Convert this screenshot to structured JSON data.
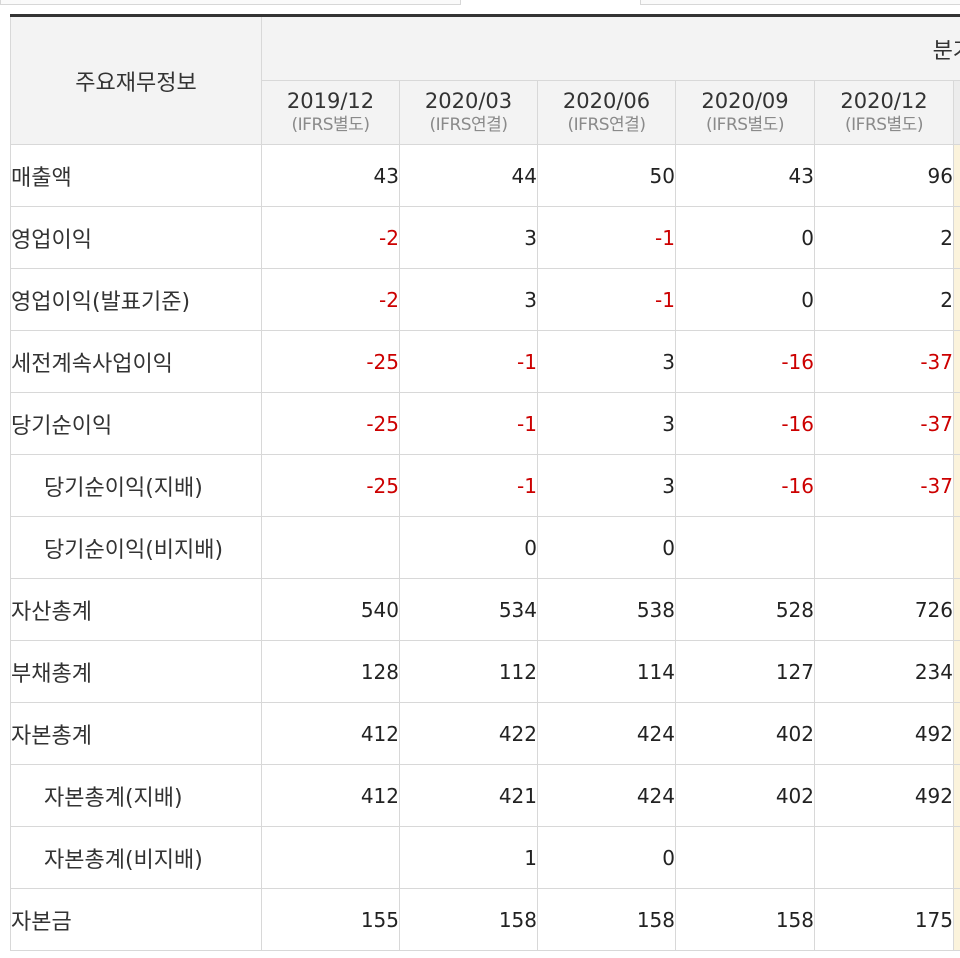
{
  "table": {
    "corner_label": "주요재무정보",
    "group_label": "분기",
    "periods": [
      {
        "date": "2019/12",
        "basis": "(IFRS별도)"
      },
      {
        "date": "2020/03",
        "basis": "(IFRS연결)"
      },
      {
        "date": "2020/06",
        "basis": "(IFRS연결)"
      },
      {
        "date": "2020/09",
        "basis": "(IFRS별도)"
      },
      {
        "date": "2020/12",
        "basis": "(IFRS별도)"
      }
    ],
    "rows": [
      {
        "label": "매출액",
        "values": [
          "43",
          "44",
          "50",
          "43",
          "96"
        ]
      },
      {
        "label": "영업이익",
        "values": [
          "-2",
          "3",
          "-1",
          "0",
          "2"
        ]
      },
      {
        "label": "영업이익(발표기준)",
        "values": [
          "-2",
          "3",
          "-1",
          "0",
          "2"
        ]
      },
      {
        "label": "세전계속사업이익",
        "values": [
          "-25",
          "-1",
          "3",
          "-16",
          "-37"
        ]
      },
      {
        "label": "당기순이익",
        "values": [
          "-25",
          "-1",
          "3",
          "-16",
          "-37"
        ]
      },
      {
        "label": "당기순이익(지배)",
        "values": [
          "-25",
          "-1",
          "3",
          "-16",
          "-37"
        ]
      },
      {
        "label": "당기순이익(비지배)",
        "values": [
          "",
          "0",
          "0",
          "",
          ""
        ]
      },
      {
        "label": "자산총계",
        "values": [
          "540",
          "534",
          "538",
          "528",
          "726"
        ]
      },
      {
        "label": "부채총계",
        "values": [
          "128",
          "112",
          "114",
          "127",
          "234"
        ]
      },
      {
        "label": "자본총계",
        "values": [
          "412",
          "422",
          "424",
          "402",
          "492"
        ]
      },
      {
        "label": "자본총계(지배)",
        "values": [
          "412",
          "421",
          "424",
          "402",
          "492"
        ]
      },
      {
        "label": "자본총계(비지배)",
        "values": [
          "",
          "1",
          "0",
          "",
          ""
        ]
      },
      {
        "label": "자본금",
        "values": [
          "155",
          "158",
          "158",
          "158",
          "175"
        ]
      }
    ]
  },
  "colors": {
    "negative": "#cc0000",
    "header_bg": "#f3f3f3",
    "grid": "#d8d8d8"
  }
}
